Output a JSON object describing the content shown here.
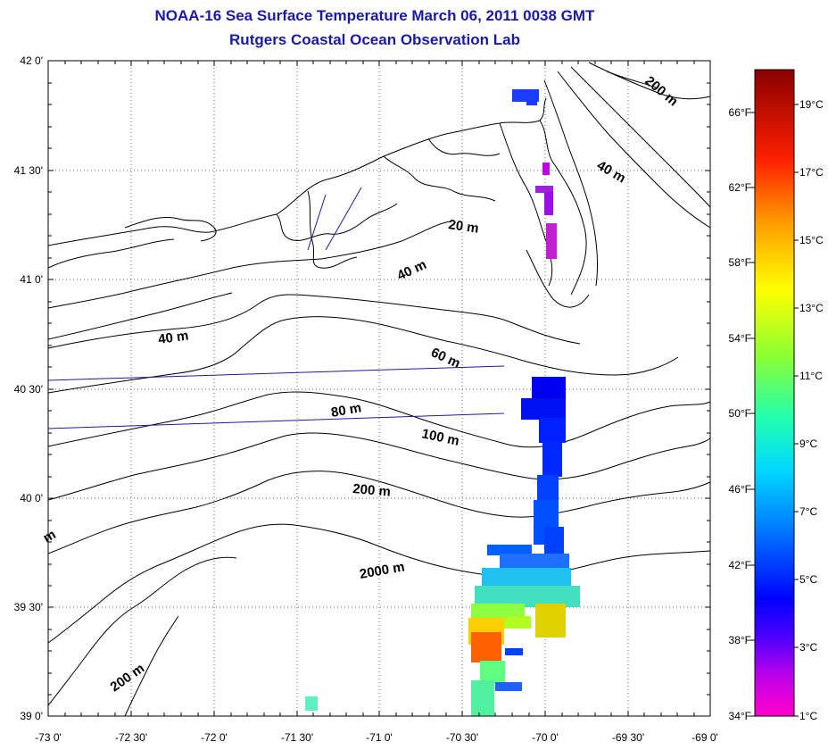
{
  "header": {
    "title": "NOAA-16 Sea Surface Temperature March 06, 2011 0038 GMT",
    "subtitle": "Rutgers Coastal Ocean Observation Lab"
  },
  "map": {
    "lon_ticks": [
      "-73 0'",
      "-72 30'",
      "-72 0'",
      "-71 30'",
      "-71 0'",
      "-70 30'",
      "-70 0'",
      "-69 30'",
      "-69 0'"
    ],
    "lat_ticks": [
      "42 0'",
      "41 30'",
      "41 0'",
      "40 30'",
      "40 0'",
      "39 30'",
      "39 0'"
    ],
    "contour_labels": [
      "200 m",
      "40 m",
      "20 m",
      "40 m",
      "40 m",
      "60 m",
      "80 m",
      "100 m",
      "200 m",
      "2000 m",
      "200 m",
      "m"
    ]
  },
  "colorbar": {
    "fahrenheit_labels": [
      "66°F",
      "62°F",
      "58°F",
      "54°F",
      "50°F",
      "46°F",
      "42°F",
      "38°F",
      "34°F"
    ],
    "celsius_labels": [
      "19°C",
      "17°C",
      "15°C",
      "13°C",
      "11°C",
      "9°C",
      "7°C",
      "5°C",
      "3°C",
      "1°C"
    ],
    "colors": [
      "#ff00cc",
      "#7a00ff",
      "#0000ff",
      "#0080ff",
      "#00e0ff",
      "#20ffa0",
      "#a0ff20",
      "#ffff00",
      "#ff9000",
      "#ff0000",
      "#8b0000"
    ]
  }
}
